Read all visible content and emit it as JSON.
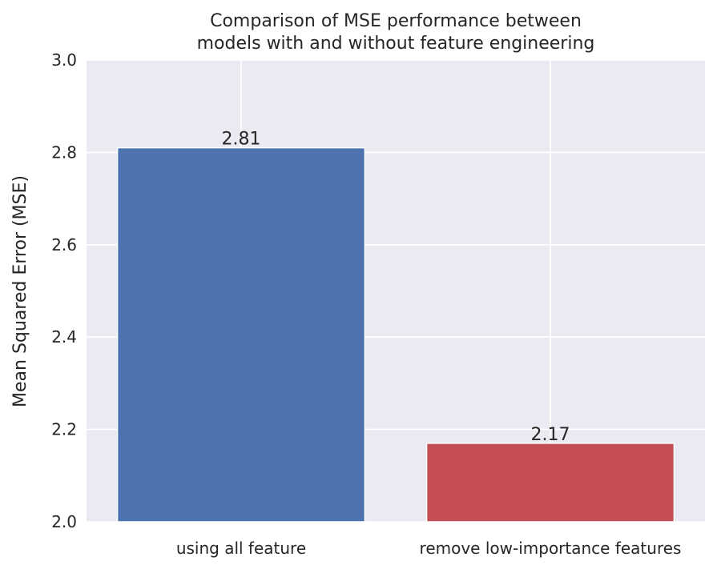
{
  "chart_data": {
    "type": "bar",
    "title": "Comparison of MSE performance between models with and without feature engineering",
    "title_lines": [
      "Comparison of MSE performance between",
      "models with and without feature engineering"
    ],
    "xlabel": "",
    "ylabel": "Mean Squared Error (MSE)",
    "categories": [
      "using all feature",
      "remove low-importance features"
    ],
    "values": [
      2.81,
      2.17
    ],
    "value_labels": [
      "2.81",
      "2.17"
    ],
    "bar_colors": [
      "#4c72b0",
      "#c44e52"
    ],
    "ylim": [
      2.0,
      3.0
    ],
    "yticks": [
      2.0,
      2.2,
      2.4,
      2.6,
      2.8,
      3.0
    ],
    "ytick_labels": [
      "2.0",
      "2.2",
      "2.4",
      "2.6",
      "2.8",
      "3.0"
    ],
    "grid": true,
    "plot_background": "#eaeaf2",
    "grid_color": "#ffffff"
  }
}
